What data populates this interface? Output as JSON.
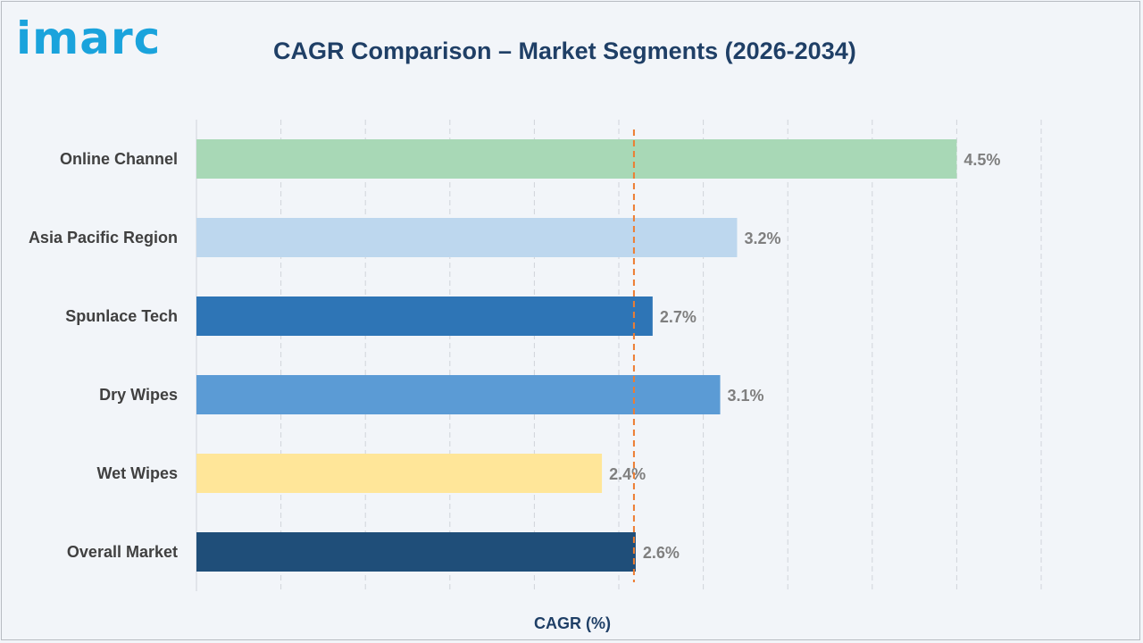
{
  "brand": {
    "logo_text": "imarc",
    "logo_color": "#1aa3dc"
  },
  "chart_data": {
    "type": "bar",
    "orientation": "horizontal",
    "title": "CAGR Comparison – Market Segments (2026-2034)",
    "xlabel": "CAGR (%)",
    "ylabel": "",
    "xlim": [
      0,
      5
    ],
    "grid": "vertical dashed",
    "categories": [
      "Online Channel",
      "Asia Pacific Region",
      "Spunlace Tech",
      "Dry Wipes",
      "Wet Wipes",
      "Overall Market"
    ],
    "values": [
      4.5,
      3.2,
      2.7,
      3.1,
      2.4,
      2.6
    ],
    "value_labels": [
      "4.5%",
      "3.2%",
      "2.7%",
      "3.1%",
      "2.4%",
      "2.6%"
    ],
    "colors": [
      "#a8d8b6",
      "#bdd7ee",
      "#2e75b6",
      "#5b9bd5",
      "#ffe699",
      "#1f4e79"
    ],
    "reference_line": {
      "value": 2.6,
      "style": "dashed",
      "color": "#ed7d31"
    }
  }
}
